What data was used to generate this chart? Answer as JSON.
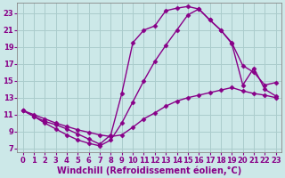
{
  "background_color": "#cce8e8",
  "grid_color": "#aacccc",
  "line_color": "#880088",
  "line_width": 1.0,
  "marker": "D",
  "marker_size": 2.5,
  "xlabel": "Windchill (Refroidissement éolien,°C)",
  "xlabel_fontsize": 7.0,
  "tick_fontsize": 6.0,
  "xlim": [
    -0.5,
    23.5
  ],
  "ylim": [
    6.5,
    24.2
  ],
  "xticks": [
    0,
    1,
    2,
    3,
    4,
    5,
    6,
    7,
    8,
    9,
    10,
    11,
    12,
    13,
    14,
    15,
    16,
    17,
    18,
    19,
    20,
    21,
    22,
    23
  ],
  "yticks": [
    7,
    9,
    11,
    13,
    15,
    17,
    19,
    21,
    23
  ],
  "curve1_x": [
    0,
    1,
    2,
    3,
    4,
    5,
    6,
    7,
    8,
    9,
    10,
    11,
    12,
    13,
    14,
    15,
    16,
    17,
    18,
    19,
    20,
    21,
    22,
    23
  ],
  "curve1_y": [
    11.5,
    10.8,
    10.2,
    9.8,
    9.3,
    8.7,
    8.1,
    7.5,
    8.6,
    13.5,
    19.5,
    21.0,
    21.5,
    23.3,
    23.6,
    23.8,
    23.5,
    22.2,
    21.0,
    19.4,
    14.5,
    16.5,
    14.0,
    13.2
  ],
  "curve2_x": [
    0,
    1,
    2,
    3,
    4,
    5,
    6,
    7,
    8,
    9,
    10,
    11,
    12,
    13,
    14,
    15,
    16,
    17,
    18,
    19,
    20,
    21,
    22,
    23
  ],
  "curve2_y": [
    11.5,
    11.0,
    10.5,
    10.0,
    9.6,
    9.2,
    8.9,
    8.6,
    8.4,
    8.6,
    9.5,
    10.5,
    11.2,
    12.0,
    12.6,
    13.0,
    13.3,
    13.6,
    13.9,
    14.2,
    13.8,
    13.5,
    13.3,
    13.0
  ],
  "curve3_x": [
    0,
    1,
    2,
    3,
    4,
    5,
    6,
    7,
    8,
    9,
    10,
    11,
    12,
    13,
    14,
    15,
    16,
    17,
    18,
    19,
    20,
    21,
    22,
    23
  ],
  "curve3_y": [
    11.5,
    10.8,
    10.0,
    9.3,
    8.6,
    8.0,
    7.6,
    7.3,
    8.0,
    10.0,
    12.5,
    15.0,
    17.3,
    19.2,
    21.0,
    22.8,
    23.5,
    22.2,
    21.0,
    19.5,
    16.8,
    16.0,
    14.5,
    14.8
  ]
}
